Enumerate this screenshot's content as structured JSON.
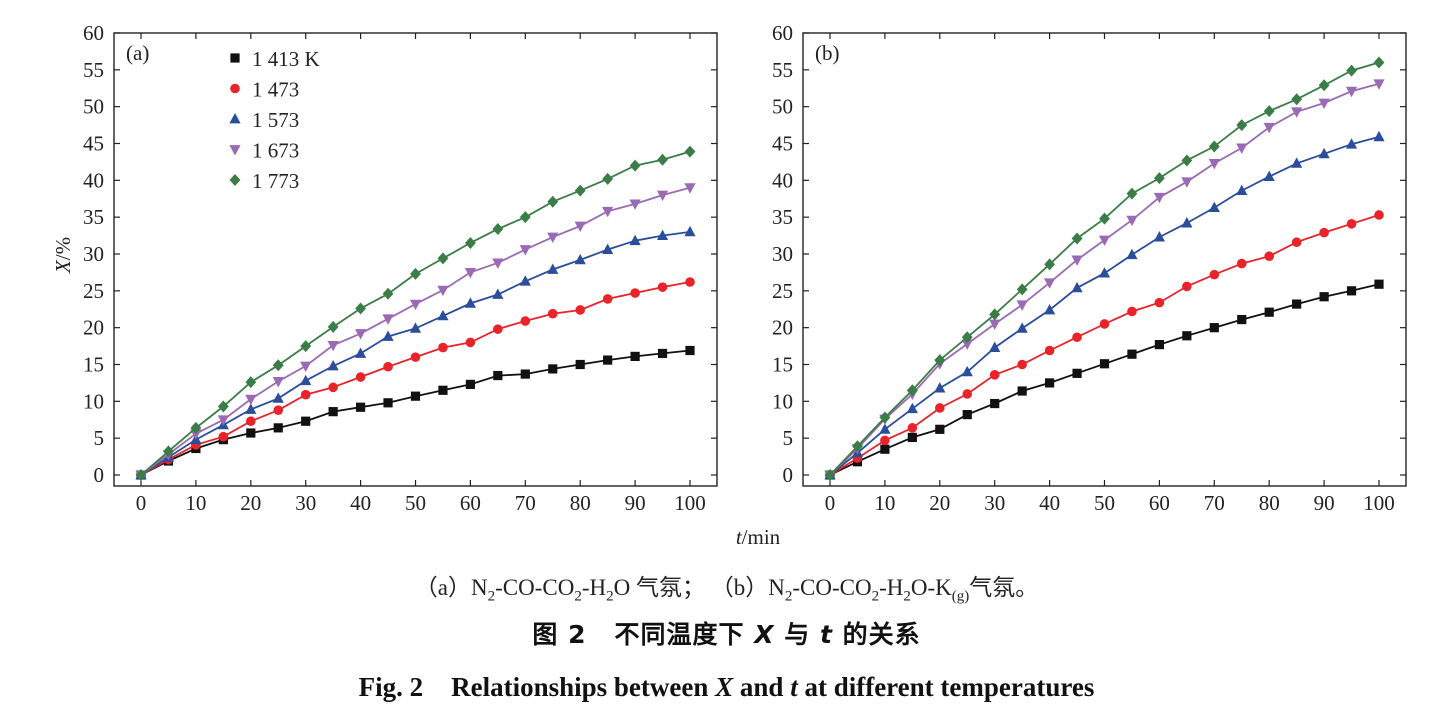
{
  "figure": {
    "sub_caption": {
      "a_label": "（a）",
      "a_text_parts": [
        "N",
        "2",
        "-CO-CO",
        "2",
        "-H",
        "2",
        "O 气氛；"
      ],
      "b_label": "（b）",
      "b_text_parts": [
        "N",
        "2",
        "-CO-CO",
        "2",
        "-H",
        "2",
        "O-K",
        "(g)",
        "气氛。"
      ]
    },
    "title_cn": {
      "prefix": "图 2",
      "part1": "不同温度下",
      "var_x": "X",
      "part2": "与",
      "var_t": "t",
      "part3": "的关系"
    },
    "title_en": {
      "prefix": "Fig. 2",
      "part1": "Relationships between",
      "var_x": "X",
      "part2": "and",
      "var_t": "t",
      "part3": "at different temperatures"
    },
    "x_axis_title": {
      "var": "t",
      "unit": "/min"
    },
    "y_axis_title": {
      "var": "X",
      "unit": "/%"
    }
  },
  "colors": {
    "1 413 K": "#111111",
    "1 473": "#e8232a",
    "1 573": "#2a4d9c",
    "1 673": "#9a6ab5",
    "1 773": "#3a7d46"
  },
  "chart_data": [
    {
      "type": "line",
      "panel_label": "(a)",
      "xlabel": "t/min",
      "ylabel": "X/%",
      "xlim": [
        0,
        100
      ],
      "ylim": [
        0,
        60
      ],
      "xticks": [
        0,
        10,
        20,
        30,
        40,
        50,
        60,
        70,
        80,
        90,
        100
      ],
      "yticks": [
        0,
        5,
        10,
        15,
        20,
        25,
        30,
        35,
        40,
        45,
        50,
        55,
        60
      ],
      "legend_position": "top-left",
      "x": [
        0,
        5,
        10,
        15,
        20,
        25,
        30,
        35,
        40,
        45,
        50,
        55,
        60,
        65,
        70,
        75,
        80,
        85,
        90,
        95,
        100
      ],
      "series": [
        {
          "name": "1 413 K",
          "marker": "square",
          "color": "#111111",
          "values": [
            0,
            1.9,
            3.6,
            4.8,
            5.7,
            6.4,
            7.3,
            8.6,
            9.2,
            9.8,
            10.7,
            11.5,
            12.3,
            13.5,
            13.7,
            14.4,
            15.0,
            15.6,
            16.1,
            16.5,
            16.9
          ]
        },
        {
          "name": "1 473",
          "marker": "circle",
          "color": "#e8232a",
          "values": [
            0,
            2.1,
            4.1,
            5.2,
            7.3,
            8.8,
            10.9,
            11.9,
            13.3,
            14.7,
            16.0,
            17.3,
            18.0,
            19.8,
            20.9,
            21.9,
            22.4,
            23.9,
            24.7,
            25.5,
            26.2
          ]
        },
        {
          "name": "1 573",
          "marker": "triangle-up",
          "color": "#2a4d9c",
          "values": [
            0,
            2.4,
            4.8,
            6.8,
            8.9,
            10.4,
            12.8,
            14.8,
            16.5,
            18.8,
            19.9,
            21.6,
            23.3,
            24.5,
            26.3,
            27.9,
            29.2,
            30.6,
            31.8,
            32.5,
            33.0
          ]
        },
        {
          "name": "1 673",
          "marker": "triangle-down",
          "color": "#9a6ab5",
          "values": [
            0,
            2.8,
            5.6,
            7.5,
            10.3,
            12.7,
            14.8,
            17.6,
            19.2,
            21.2,
            23.2,
            25.1,
            27.5,
            28.8,
            30.6,
            32.3,
            33.8,
            35.8,
            36.8,
            38.0,
            39.0
          ]
        },
        {
          "name": "1 773",
          "marker": "diamond",
          "color": "#3a7d46",
          "values": [
            0,
            3.2,
            6.4,
            9.3,
            12.6,
            14.9,
            17.5,
            20.1,
            22.6,
            24.6,
            27.3,
            29.4,
            31.5,
            33.4,
            35.0,
            37.1,
            38.6,
            40.2,
            42.0,
            42.8,
            43.9
          ]
        }
      ]
    },
    {
      "type": "line",
      "panel_label": "(b)",
      "xlabel": "t/min",
      "ylabel": "X/%",
      "xlim": [
        0,
        100
      ],
      "ylim": [
        0,
        60
      ],
      "xticks": [
        0,
        10,
        20,
        30,
        40,
        50,
        60,
        70,
        80,
        90,
        100
      ],
      "yticks": [
        0,
        5,
        10,
        15,
        20,
        25,
        30,
        35,
        40,
        45,
        50,
        55,
        60
      ],
      "x": [
        0,
        5,
        10,
        15,
        20,
        25,
        30,
        35,
        40,
        45,
        50,
        55,
        60,
        65,
        70,
        75,
        80,
        85,
        90,
        95,
        100
      ],
      "series": [
        {
          "name": "1 413 K",
          "marker": "square",
          "color": "#111111",
          "values": [
            0,
            1.8,
            3.5,
            5.1,
            6.2,
            8.2,
            9.7,
            11.4,
            12.5,
            13.8,
            15.1,
            16.4,
            17.7,
            18.9,
            20.0,
            21.1,
            22.1,
            23.2,
            24.2,
            25.0,
            25.9
          ]
        },
        {
          "name": "1 473",
          "marker": "circle",
          "color": "#e8232a",
          "values": [
            0,
            2.3,
            4.7,
            6.4,
            9.1,
            11.0,
            13.6,
            15.0,
            16.9,
            18.7,
            20.5,
            22.2,
            23.4,
            25.6,
            27.2,
            28.7,
            29.7,
            31.6,
            32.9,
            34.1,
            35.3
          ]
        },
        {
          "name": "1 573",
          "marker": "triangle-up",
          "color": "#2a4d9c",
          "values": [
            0,
            3.0,
            6.2,
            9.0,
            11.8,
            14.0,
            17.3,
            19.9,
            22.4,
            25.4,
            27.4,
            29.9,
            32.3,
            34.2,
            36.3,
            38.6,
            40.5,
            42.3,
            43.6,
            44.9,
            45.9
          ]
        },
        {
          "name": "1 673",
          "marker": "triangle-down",
          "color": "#9a6ab5",
          "values": [
            0,
            3.6,
            7.6,
            11.0,
            15.1,
            17.8,
            20.5,
            23.1,
            26.1,
            29.2,
            31.9,
            34.6,
            37.7,
            39.8,
            42.3,
            44.4,
            47.2,
            49.3,
            50.5,
            52.1,
            53.1
          ]
        },
        {
          "name": "1 773",
          "marker": "diamond",
          "color": "#3a7d46",
          "values": [
            0,
            3.9,
            7.8,
            11.5,
            15.6,
            18.7,
            21.8,
            25.2,
            28.6,
            32.1,
            34.8,
            38.2,
            40.3,
            42.7,
            44.6,
            47.5,
            49.4,
            51.0,
            52.9,
            54.9,
            56.0
          ]
        }
      ]
    }
  ]
}
